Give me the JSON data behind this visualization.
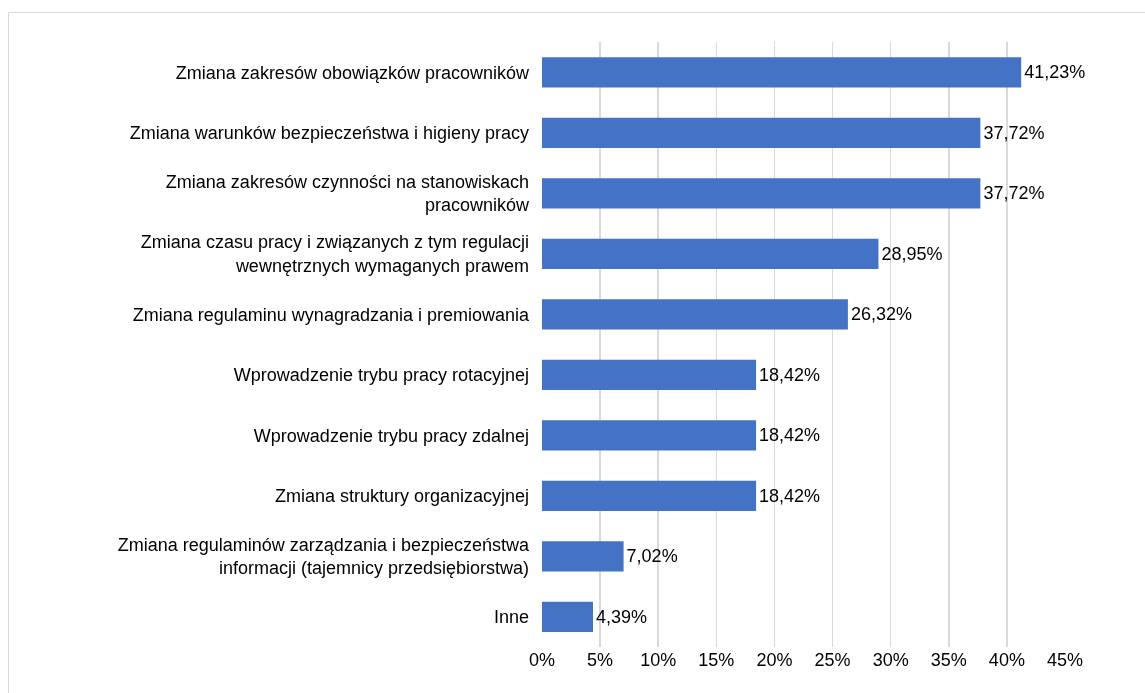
{
  "chart_data": {
    "type": "bar",
    "orientation": "horizontal",
    "categories": [
      "Zmiana zakresów obowiązków pracowników",
      "Zmiana warunków bezpieczeństwa i higieny pracy",
      "Zmiana zakresów czynności na stanowiskach pracowników",
      "Zmiana czasu pracy i związanych z tym regulacji wewnętrznych wymaganych prawem",
      "Zmiana regulaminu wynagradzania i premiowania",
      "Wprowadzenie trybu pracy rotacyjnej",
      "Wprowadzenie trybu pracy zdalnej",
      "Zmiana struktury organizacyjnej",
      "Zmiana regulaminów zarządzania i bezpieczeństwa informacji (tajemnicy przedsiębiorstwa)",
      "Inne"
    ],
    "values": [
      41.23,
      37.72,
      37.72,
      28.95,
      26.32,
      18.42,
      18.42,
      18.42,
      7.02,
      4.39
    ],
    "value_labels": [
      "41,23%",
      "37,72%",
      "37,72%",
      "28,95%",
      "26,32%",
      "18,42%",
      "18,42%",
      "18,42%",
      "7,02%",
      "4,39%"
    ],
    "color": "#4472c4",
    "xlim": [
      0,
      45
    ],
    "xticks": [
      {
        "value": 0,
        "label": "0%"
      },
      {
        "value": 5,
        "label": "5%"
      },
      {
        "value": 10,
        "label": "10%"
      },
      {
        "value": 15,
        "label": "15%"
      },
      {
        "value": 20,
        "label": "20%"
      },
      {
        "value": 25,
        "label": "25%"
      },
      {
        "value": 30,
        "label": "30%"
      },
      {
        "value": 35,
        "label": "35%"
      },
      {
        "value": 40,
        "label": "40%"
      },
      {
        "value": 45,
        "label": "45%"
      }
    ],
    "grid": "x"
  }
}
